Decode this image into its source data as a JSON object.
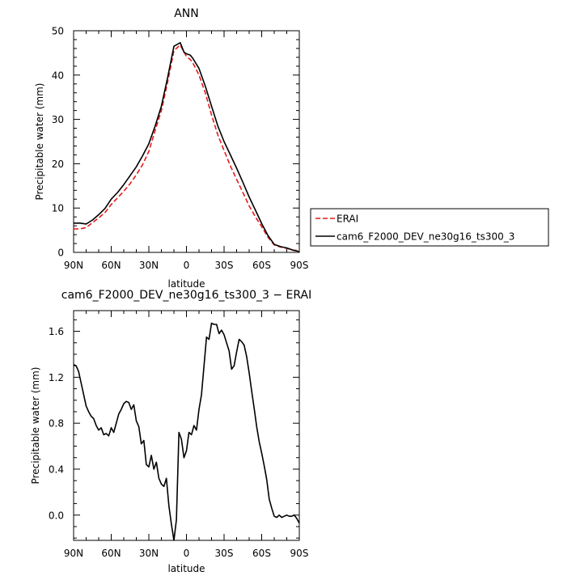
{
  "chart_data": [
    {
      "type": "line",
      "title": "ANN",
      "xlabel": "latitude",
      "ylabel": "Precipitable water (mm)",
      "xlim": [
        90,
        -90
      ],
      "ylim": [
        0,
        50
      ],
      "x_ticks": [
        {
          "value": 90,
          "label": "90N"
        },
        {
          "value": 60,
          "label": "60N"
        },
        {
          "value": 30,
          "label": "30N"
        },
        {
          "value": 0,
          "label": "0"
        },
        {
          "value": -30,
          "label": "30S"
        },
        {
          "value": -60,
          "label": "60S"
        },
        {
          "value": -90,
          "label": "90S"
        }
      ],
      "y_ticks": [
        0,
        10,
        20,
        30,
        40,
        50
      ],
      "legend_position": "right",
      "series": [
        {
          "name": "ERAI",
          "color": "#e41a1c",
          "dash": "dashed",
          "x": [
            90,
            85,
            80,
            75,
            70,
            65,
            60,
            55,
            50,
            45,
            40,
            35,
            30,
            25,
            20,
            15,
            10,
            5,
            2,
            0,
            -3,
            -5,
            -10,
            -15,
            -20,
            -25,
            -30,
            -35,
            -40,
            -45,
            -50,
            -55,
            -60,
            -65,
            -70,
            -75,
            -80,
            -85,
            -90
          ],
          "y": [
            5.3,
            5.3,
            5.6,
            6.7,
            7.8,
            9.0,
            10.8,
            12.3,
            13.8,
            15.5,
            17.5,
            19.8,
            22.8,
            27.5,
            32.0,
            38.5,
            45.5,
            46.8,
            45.2,
            44.2,
            43.5,
            42.8,
            40.0,
            36.0,
            31.0,
            26.5,
            23.0,
            19.5,
            16.5,
            13.5,
            10.5,
            8.0,
            5.8,
            3.4,
            1.7,
            1.2,
            0.9,
            0.5,
            0.4
          ]
        },
        {
          "name": "cam6_F2000_DEV_ne30g16_ts300_3",
          "color": "#000000",
          "dash": "solid",
          "x": [
            90,
            85,
            80,
            75,
            70,
            65,
            60,
            55,
            50,
            45,
            40,
            35,
            30,
            25,
            20,
            15,
            10,
            5,
            2,
            0,
            -3,
            -5,
            -10,
            -15,
            -20,
            -25,
            -30,
            -35,
            -40,
            -45,
            -50,
            -55,
            -60,
            -65,
            -70,
            -75,
            -80,
            -85,
            -90
          ],
          "y": [
            6.6,
            6.6,
            6.4,
            7.3,
            8.5,
            9.9,
            12.0,
            13.5,
            15.3,
            17.3,
            19.3,
            21.8,
            24.5,
            28.5,
            33.0,
            39.5,
            46.5,
            47.3,
            45.2,
            44.8,
            44.5,
            43.8,
            41.5,
            37.5,
            33.0,
            28.5,
            25.0,
            22.0,
            19.0,
            15.8,
            12.5,
            9.5,
            6.5,
            3.8,
            1.8,
            1.3,
            1.0,
            0.5,
            0.2
          ]
        }
      ]
    },
    {
      "type": "line",
      "title": "cam6_F2000_DEV_ne30g16_ts300_3 − ERAI",
      "xlabel": "latitude",
      "ylabel": "Precipitable water (mm)",
      "xlim": [
        90,
        -90
      ],
      "ylim": [
        -0.22,
        1.78
      ],
      "x_ticks": [
        {
          "value": 90,
          "label": "90N"
        },
        {
          "value": 60,
          "label": "60N"
        },
        {
          "value": 30,
          "label": "30N"
        },
        {
          "value": 0,
          "label": "0"
        },
        {
          "value": -30,
          "label": "30S"
        },
        {
          "value": -60,
          "label": "60S"
        },
        {
          "value": -90,
          "label": "90S"
        }
      ],
      "y_ticks": [
        {
          "value": 0.0,
          "label": "0.0"
        },
        {
          "value": 0.4,
          "label": "0.4"
        },
        {
          "value": 0.8,
          "label": "0.8"
        },
        {
          "value": 1.2,
          "label": "1.2"
        },
        {
          "value": 1.6,
          "label": "1.6"
        }
      ],
      "series": [
        {
          "color": "#000000",
          "dash": "solid",
          "x": [
            90,
            88,
            86,
            84,
            82,
            80,
            78,
            76,
            74,
            72,
            70,
            68,
            66,
            64,
            62,
            60,
            58,
            56,
            54,
            52,
            50,
            48,
            46,
            44,
            42,
            40,
            38,
            36,
            34,
            32,
            30,
            28,
            26,
            24,
            22,
            20,
            18,
            16,
            14,
            12,
            10,
            8,
            6,
            4,
            2,
            0,
            -2,
            -4,
            -6,
            -8,
            -10,
            -12,
            -14,
            -16,
            -18,
            -20,
            -22,
            -24,
            -26,
            -28,
            -30,
            -32,
            -34,
            -36,
            -38,
            -40,
            -42,
            -44,
            -46,
            -48,
            -50,
            -52,
            -54,
            -56,
            -58,
            -60,
            -62,
            -64,
            -66,
            -68,
            -70,
            -72,
            -74,
            -76,
            -78,
            -80,
            -82,
            -84,
            -86,
            -88,
            -90
          ],
          "y": [
            1.31,
            1.3,
            1.25,
            1.15,
            1.05,
            0.95,
            0.9,
            0.86,
            0.84,
            0.78,
            0.74,
            0.76,
            0.7,
            0.71,
            0.69,
            0.76,
            0.72,
            0.8,
            0.88,
            0.92,
            0.97,
            0.99,
            0.98,
            0.92,
            0.96,
            0.82,
            0.77,
            0.62,
            0.65,
            0.44,
            0.42,
            0.52,
            0.4,
            0.46,
            0.32,
            0.27,
            0.25,
            0.32,
            0.08,
            -0.08,
            -0.22,
            -0.04,
            0.72,
            0.66,
            0.5,
            0.56,
            0.72,
            0.7,
            0.78,
            0.74,
            0.92,
            1.05,
            1.3,
            1.55,
            1.53,
            1.67,
            1.66,
            1.66,
            1.58,
            1.61,
            1.57,
            1.5,
            1.43,
            1.27,
            1.3,
            1.42,
            1.53,
            1.51,
            1.48,
            1.38,
            1.24,
            1.08,
            0.93,
            0.77,
            0.64,
            0.54,
            0.43,
            0.31,
            0.14,
            0.06,
            -0.01,
            -0.02,
            0.0,
            -0.02,
            -0.01,
            0.0,
            -0.01,
            -0.01,
            0.0,
            -0.03,
            -0.07
          ]
        }
      ]
    }
  ]
}
